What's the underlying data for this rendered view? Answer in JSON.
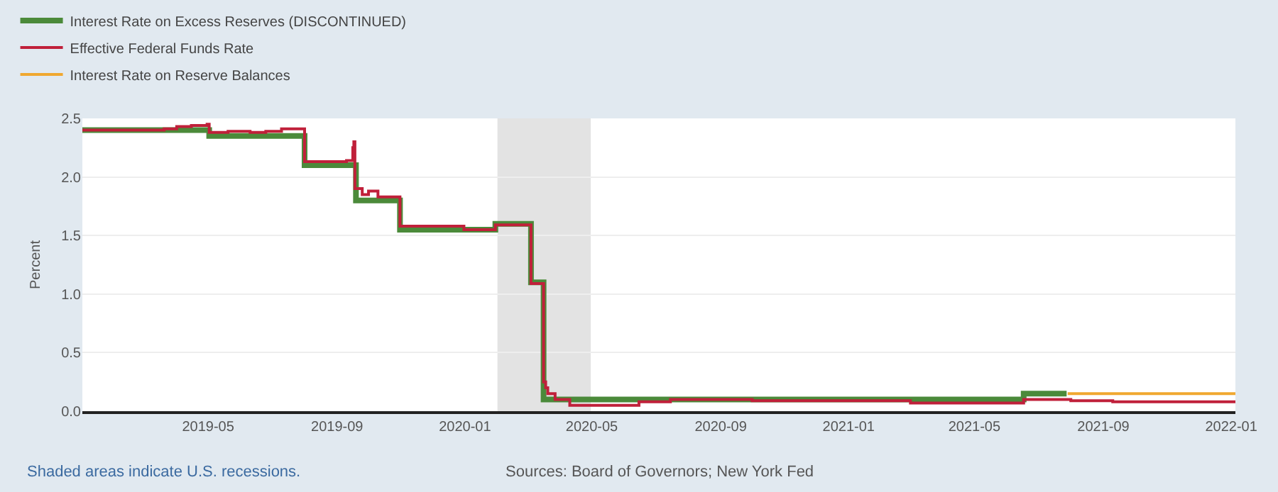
{
  "chart_data": {
    "type": "step",
    "ylabel": "Percent",
    "xlim": [
      "2019-01-01",
      "2022-01-05"
    ],
    "ylim": [
      0,
      2.5
    ],
    "xticks": [
      "2019-05",
      "2019-09",
      "2020-01",
      "2020-05",
      "2020-09",
      "2021-01",
      "2021-05",
      "2021-09",
      "2022-01"
    ],
    "yticks": [
      {
        "value": 0,
        "label": "0.0"
      },
      {
        "value": 0.5,
        "label": "0.5"
      },
      {
        "value": 1,
        "label": "1.0"
      },
      {
        "value": 1.5,
        "label": "1.5"
      },
      {
        "value": 2,
        "label": "2.0"
      },
      {
        "value": 2.5,
        "label": "2.5"
      }
    ],
    "grid": "y",
    "legend": "top left",
    "marker": "none",
    "line_style": "solid",
    "bands": [
      {
        "axis": "x",
        "from": "2020-02-01",
        "to": "2020-04-30",
        "color": "#e3e3e3"
      }
    ],
    "annotations": [
      "Shaded areas indicate U.S. recessions.",
      "Sources: Board of Governors; New York Fed"
    ],
    "series": [
      {
        "name": "Interest Rate on Excess Reserves (DISCONTINUED)",
        "color": "#4b8a3a",
        "x": [
          "2019-01-01",
          "2019-05-02",
          "2019-08-01",
          "2019-09-19",
          "2019-10-31",
          "2020-01-30",
          "2020-03-04",
          "2020-03-16",
          "2021-06-17",
          "2021-07-28"
        ],
        "values": [
          2.4,
          2.35,
          2.1,
          1.8,
          1.55,
          1.6,
          1.1,
          0.1,
          0.15,
          0.15
        ]
      },
      {
        "name": "Effective Federal Funds Rate",
        "color": "#c0203a",
        "x": [
          "2019-01-01",
          "2019-03-20",
          "2019-04-01",
          "2019-04-15",
          "2019-04-30",
          "2019-05-02",
          "2019-05-20",
          "2019-06-10",
          "2019-06-25",
          "2019-07-10",
          "2019-08-01",
          "2019-08-20",
          "2019-09-10",
          "2019-09-16",
          "2019-09-17",
          "2019-09-18",
          "2019-09-25",
          "2019-10-01",
          "2019-10-10",
          "2019-10-31",
          "2019-12-31",
          "2020-01-02",
          "2020-01-30",
          "2020-03-04",
          "2020-03-16",
          "2020-03-18",
          "2020-03-20",
          "2020-03-27",
          "2020-04-10",
          "2020-05-15",
          "2020-06-15",
          "2020-07-15",
          "2020-10-01",
          "2020-12-15",
          "2021-01-15",
          "2021-03-01",
          "2021-04-15",
          "2021-06-17",
          "2021-07-01",
          "2021-08-01",
          "2021-08-20",
          "2021-09-10",
          "2021-10-15",
          "2021-12-01",
          "2022-01-05"
        ],
        "values": [
          2.4,
          2.41,
          2.43,
          2.44,
          2.45,
          2.38,
          2.39,
          2.38,
          2.39,
          2.41,
          2.13,
          2.13,
          2.14,
          2.25,
          2.3,
          1.9,
          1.85,
          1.88,
          1.83,
          1.58,
          1.55,
          1.55,
          1.59,
          1.09,
          0.25,
          0.2,
          0.15,
          0.1,
          0.05,
          0.05,
          0.08,
          0.1,
          0.09,
          0.09,
          0.09,
          0.07,
          0.07,
          0.1,
          0.1,
          0.09,
          0.09,
          0.08,
          0.08,
          0.08,
          0.08
        ]
      },
      {
        "name": "Interest Rate on Reserve Balances",
        "color": "#f0a830",
        "x": [
          "2021-07-29",
          "2022-01-05"
        ],
        "values": [
          0.15,
          0.15
        ]
      }
    ]
  }
}
